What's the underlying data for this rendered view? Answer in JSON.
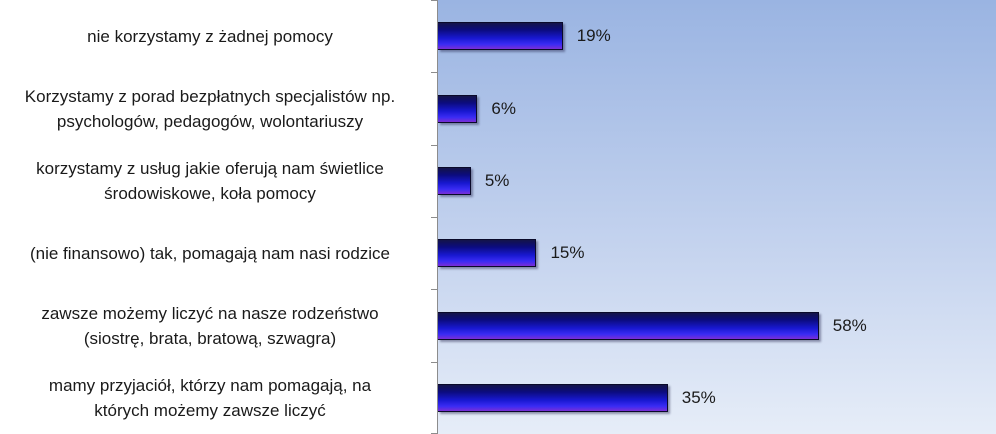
{
  "chart_data": {
    "type": "bar",
    "orientation": "horizontal",
    "title": "",
    "xlabel": "",
    "ylabel": "",
    "xlim": [
      0,
      85
    ],
    "grid": false,
    "legend": "none",
    "categories": [
      [
        "nie korzystamy z żadnej pomocy"
      ],
      [
        "Korzystamy z porad bezpłatnych specjalistów  np.",
        "psychologów, pedagogów, wolontariuszy"
      ],
      [
        "korzystamy z usług jakie oferują nam świetlice",
        "środowiskowe, koła pomocy"
      ],
      [
        "(nie finansowo) tak, pomagają nam nasi rodzice"
      ],
      [
        "zawsze możemy liczyć na nasze rodzeństwo",
        "(siostrę, brata, bratową, szwagra)"
      ],
      [
        "mamy przyjaciół, którzy nam pomagają, na",
        "których możemy zawsze liczyć"
      ]
    ],
    "values": [
      19,
      6,
      5,
      15,
      58,
      35
    ],
    "value_labels": [
      "19%",
      "6%",
      "5%",
      "15%",
      "58%",
      "35%"
    ],
    "bar_color": "#1818d0",
    "plot_background": "#9ab4e2"
  }
}
